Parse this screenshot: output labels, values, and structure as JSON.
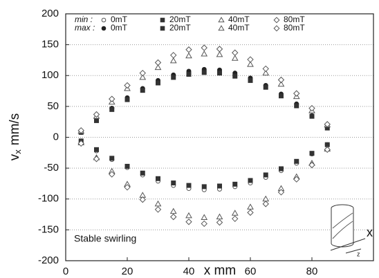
{
  "chart_data": {
    "type": "scatter",
    "y_label": "v",
    "y_label_sub": "x",
    "y_label_unit": "mm/s",
    "x_label": "x mm",
    "annotation": "Stable swirling",
    "inset_labels": [
      "x",
      "z"
    ],
    "legend_rows": [
      "min :",
      "max :"
    ],
    "xlim": [
      0,
      100
    ],
    "xticks": [
      0,
      20,
      40,
      60,
      80
    ],
    "ylim": [
      -200,
      200
    ],
    "yticks": [
      -200,
      -150,
      -100,
      -50,
      0,
      50,
      100,
      150,
      200
    ],
    "grid": true,
    "x": [
      5,
      10,
      15,
      20,
      25,
      30,
      35,
      40,
      45,
      50,
      55,
      60,
      65,
      70,
      75,
      80,
      85
    ],
    "series": [
      {
        "name": "0mT",
        "row": 0,
        "marker": "circle",
        "filled": false,
        "color": "#555555",
        "values": [
          -6,
          -22,
          -36,
          -49,
          -61,
          -71,
          -78,
          -83,
          -85,
          -84,
          -80,
          -74,
          -65,
          -54,
          -42,
          -27,
          -12
        ]
      },
      {
        "name": "20mT",
        "row": 0,
        "marker": "square",
        "filled": true,
        "color": "#333333",
        "values": [
          -6,
          -20,
          -34,
          -47,
          -58,
          -67,
          -74,
          -78,
          -80,
          -79,
          -76,
          -70,
          -61,
          -51,
          -39,
          -26,
          -12
        ]
      },
      {
        "name": "40mT",
        "row": 0,
        "marker": "triangle",
        "filled": false,
        "color": "#555555",
        "values": [
          -9,
          -33,
          -55,
          -76,
          -94,
          -108,
          -120,
          -127,
          -130,
          -129,
          -123,
          -113,
          -100,
          -83,
          -64,
          -42,
          -19
        ]
      },
      {
        "name": "80mT",
        "row": 0,
        "marker": "diamond",
        "filled": false,
        "color": "#555555",
        "values": [
          -10,
          -35,
          -60,
          -81,
          -101,
          -117,
          -129,
          -137,
          -140,
          -138,
          -132,
          -122,
          -108,
          -89,
          -68,
          -45,
          -20
        ]
      },
      {
        "name": "0mT",
        "row": 1,
        "marker": "circle",
        "filled": true,
        "color": "#222222",
        "values": [
          8,
          28,
          47,
          64,
          79,
          92,
          101,
          107,
          110,
          109,
          104,
          96,
          84,
          70,
          54,
          35,
          16
        ]
      },
      {
        "name": "20mT",
        "row": 1,
        "marker": "square",
        "filled": true,
        "color": "#333333",
        "values": [
          8,
          27,
          45,
          61,
          76,
          88,
          97,
          102,
          105,
          104,
          99,
          92,
          81,
          67,
          51,
          34,
          15
        ]
      },
      {
        "name": "40mT",
        "row": 1,
        "marker": "triangle",
        "filled": false,
        "color": "#555555",
        "values": [
          10,
          34,
          57,
          79,
          97,
          113,
          124,
          132,
          135,
          134,
          128,
          118,
          104,
          86,
          66,
          43,
          20
        ]
      },
      {
        "name": "80mT",
        "row": 1,
        "marker": "diamond",
        "filled": false,
        "color": "#555555",
        "values": [
          11,
          37,
          62,
          84,
          104,
          121,
          133,
          142,
          145,
          143,
          137,
          126,
          111,
          93,
          71,
          47,
          21
        ]
      }
    ]
  }
}
